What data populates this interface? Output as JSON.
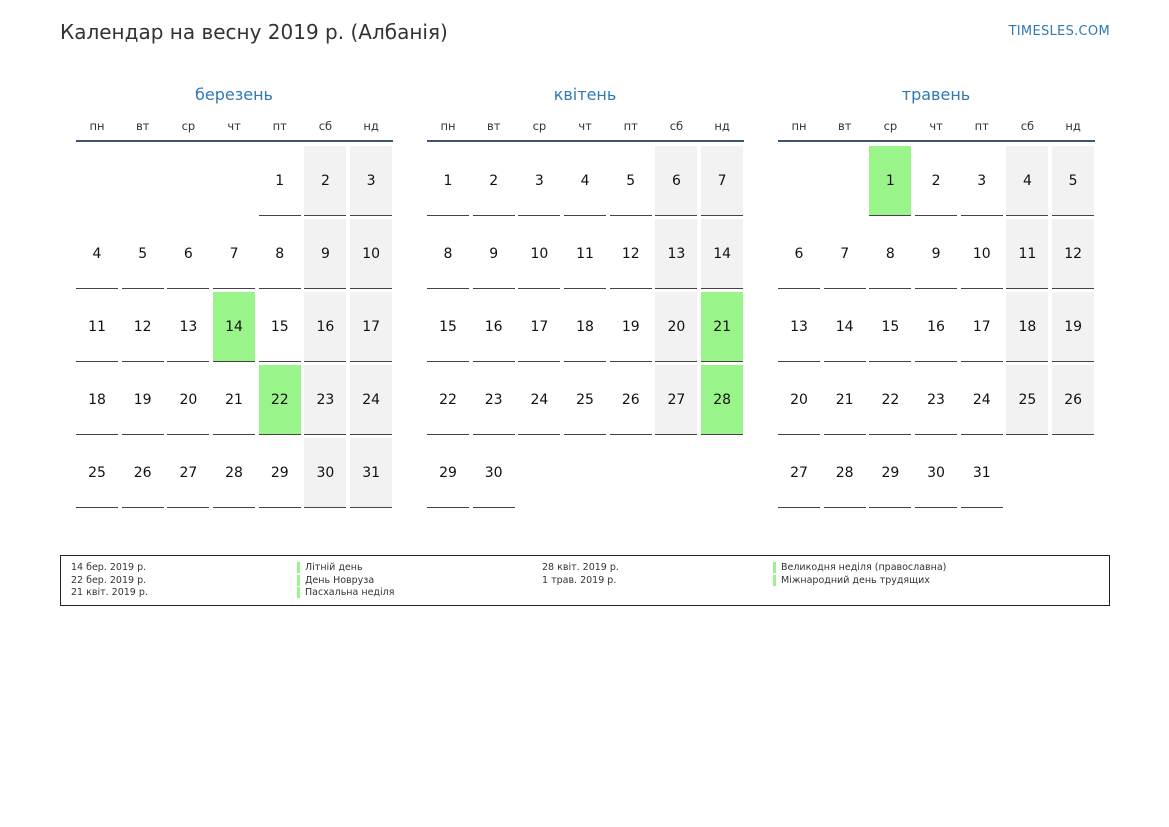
{
  "header": {
    "title": "Календар на весну 2019 р. (Албанія)",
    "site": "TIMESLES.COM"
  },
  "weekdays": [
    "пн",
    "вт",
    "ср",
    "чт",
    "пт",
    "сб",
    "нд"
  ],
  "colors": {
    "weekend": "#f2f2f2",
    "holiday": "#99f58a",
    "accent": "#2f79b5"
  },
  "months": [
    {
      "name": "березень",
      "weeks": [
        [
          "",
          "",
          "",
          "",
          "1",
          "2",
          "3"
        ],
        [
          "4",
          "5",
          "6",
          "7",
          "8",
          "9",
          "10"
        ],
        [
          "11",
          "12",
          "13",
          "14",
          "15",
          "16",
          "17"
        ],
        [
          "18",
          "19",
          "20",
          "21",
          "22",
          "23",
          "24"
        ],
        [
          "25",
          "26",
          "27",
          "28",
          "29",
          "30",
          "31"
        ]
      ],
      "holidays": [
        "14",
        "22"
      ]
    },
    {
      "name": "квітень",
      "weeks": [
        [
          "1",
          "2",
          "3",
          "4",
          "5",
          "6",
          "7"
        ],
        [
          "8",
          "9",
          "10",
          "11",
          "12",
          "13",
          "14"
        ],
        [
          "15",
          "16",
          "17",
          "18",
          "19",
          "20",
          "21"
        ],
        [
          "22",
          "23",
          "24",
          "25",
          "26",
          "27",
          "28"
        ],
        [
          "29",
          "30",
          "",
          "",
          "",
          "",
          ""
        ]
      ],
      "holidays": [
        "21",
        "28"
      ]
    },
    {
      "name": "травень",
      "weeks": [
        [
          "",
          "",
          "1",
          "2",
          "3",
          "4",
          "5"
        ],
        [
          "6",
          "7",
          "8",
          "9",
          "10",
          "11",
          "12"
        ],
        [
          "13",
          "14",
          "15",
          "16",
          "17",
          "18",
          "19"
        ],
        [
          "20",
          "21",
          "22",
          "23",
          "24",
          "25",
          "26"
        ],
        [
          "27",
          "28",
          "29",
          "30",
          "31",
          "",
          ""
        ]
      ],
      "holidays": [
        "1"
      ]
    }
  ],
  "legend": [
    [
      {
        "date": "14 бер. 2019 р.",
        "name": "Літній день"
      },
      {
        "date": "22 бер. 2019 р.",
        "name": "День Новруза"
      },
      {
        "date": "21 квіт. 2019 р.",
        "name": "Пасхальна неділя"
      }
    ],
    [
      {
        "date": "28 квіт. 2019 р.",
        "name": "Великодня неділя (православна)"
      },
      {
        "date": "1 трав. 2019 р.",
        "name": "Міжнародний день трудящих"
      }
    ]
  ]
}
